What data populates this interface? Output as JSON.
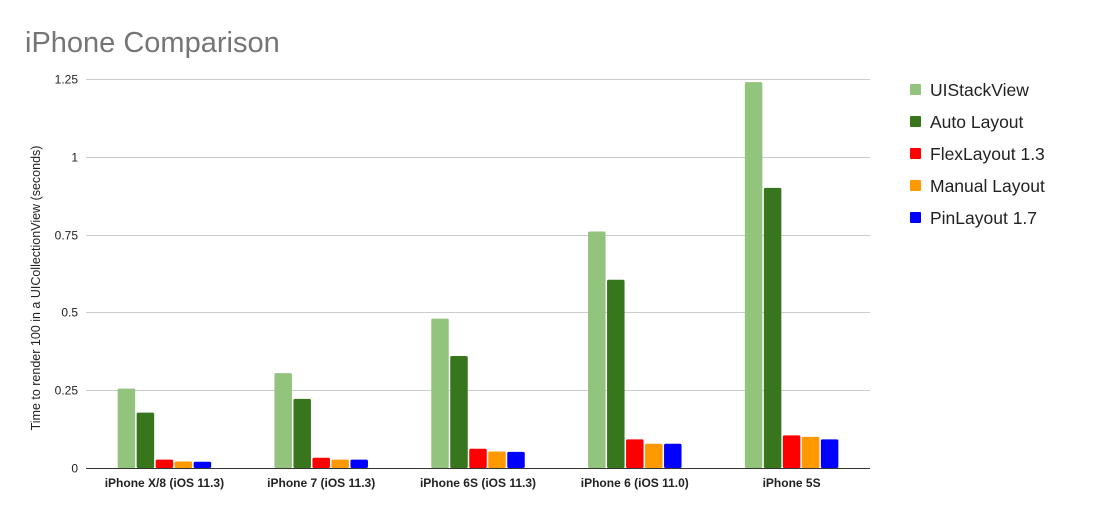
{
  "chart_data": {
    "type": "bar",
    "title": "iPhone Comparison",
    "xlabel": "",
    "ylabel": "Time to  render 100 in a UICollectionView (seconds)",
    "ylim": [
      0,
      1.25
    ],
    "yticks": [
      "0",
      "0.25",
      "0.5",
      "0.75",
      "1",
      "1.25"
    ],
    "ytick_values": [
      0,
      0.25,
      0.5,
      0.75,
      1,
      1.25
    ],
    "grid": true,
    "legend_position": "right",
    "categories": [
      "iPhone X/8 (iOS 11.3)",
      "iPhone 7 (iOS 11.3)",
      "iPhone 6S (iOS 11.3)",
      "iPhone 6 (iOS 11.0)",
      "iPhone 5S"
    ],
    "series": [
      {
        "name": "UIStackView",
        "color": "#93c47d",
        "values": [
          0.255,
          0.305,
          0.48,
          0.76,
          1.24
        ]
      },
      {
        "name": "Auto Layout",
        "color": "#38761d",
        "values": [
          0.178,
          0.222,
          0.36,
          0.605,
          0.9
        ]
      },
      {
        "name": "FlexLayout 1.3",
        "color": "#ff0000",
        "values": [
          0.027,
          0.033,
          0.062,
          0.092,
          0.105
        ]
      },
      {
        "name": "Manual Layout",
        "color": "#ff9900",
        "values": [
          0.021,
          0.027,
          0.053,
          0.078,
          0.1
        ]
      },
      {
        "name": "PinLayout 1.7",
        "color": "#0000ff",
        "values": [
          0.02,
          0.027,
          0.052,
          0.078,
          0.092
        ]
      }
    ]
  }
}
